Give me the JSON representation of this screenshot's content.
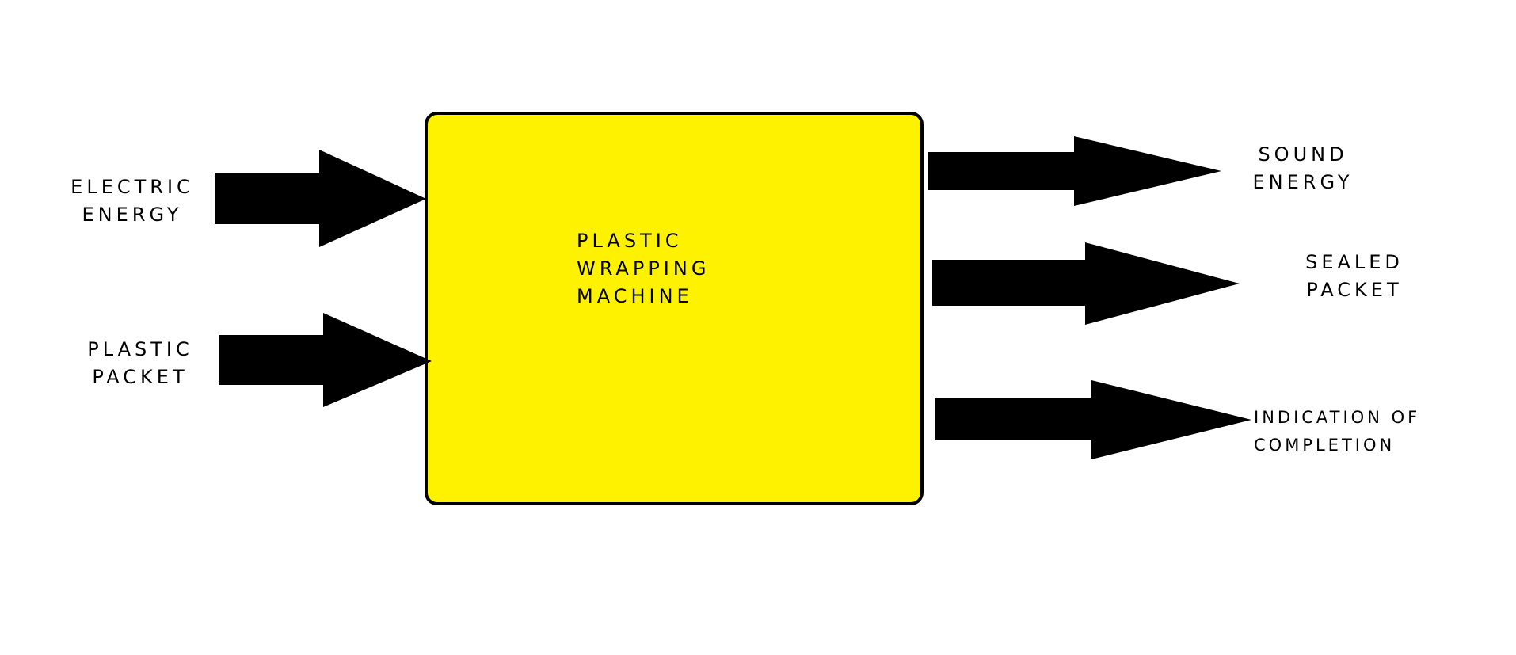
{
  "colors": {
    "background": "#ffffff",
    "machine_fill": "#fff200",
    "outline": "#000000",
    "arrow": "#000000",
    "text": "#000000"
  },
  "machine": {
    "label_lines": [
      "PLASTIC",
      "WRAPPING",
      "MACHINE"
    ]
  },
  "inputs": [
    {
      "label_lines": [
        "ELECTRIC",
        "ENERGY"
      ]
    },
    {
      "label_lines": [
        "PLASTIC",
        "PACKET"
      ]
    }
  ],
  "outputs": [
    {
      "label_lines": [
        "SOUND",
        "ENERGY"
      ]
    },
    {
      "label_lines": [
        "SEALED",
        "PACKET"
      ]
    },
    {
      "label_lines": [
        "INDICATION OF",
        "COMPLETION"
      ]
    }
  ]
}
